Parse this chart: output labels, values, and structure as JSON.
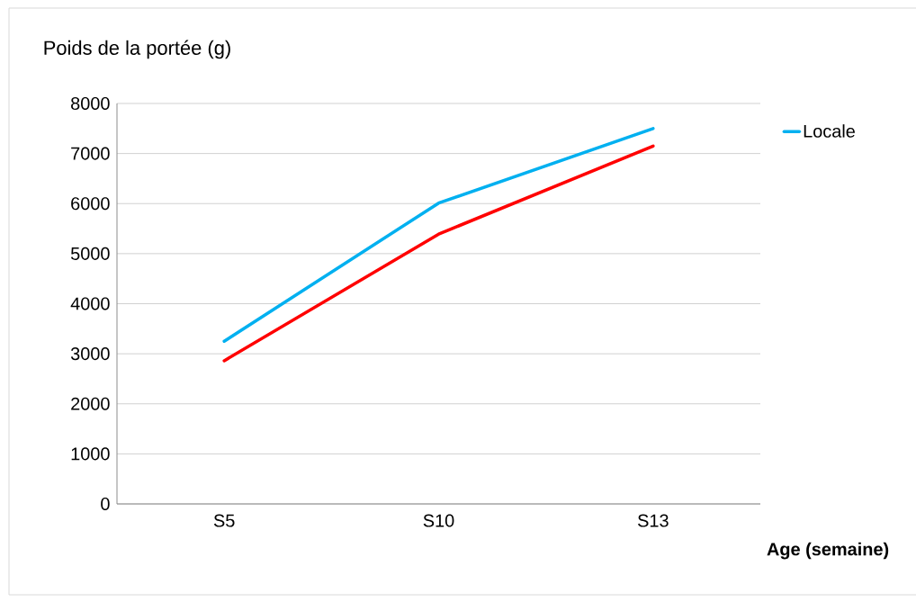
{
  "chart_data": {
    "type": "line",
    "ylabel": "Poids de la portée (g)",
    "xlabel": "Age (semaine)",
    "categories": [
      "S5",
      "S10",
      "S13"
    ],
    "series": [
      {
        "name": "Locale",
        "color": "#00b0f0",
        "values": [
          3250,
          6010,
          7500
        ]
      },
      {
        "color": "#ff0000",
        "values": [
          2860,
          5390,
          7150
        ]
      }
    ],
    "ylim": [
      0,
      8000
    ],
    "yticks": [
      0,
      1000,
      2000,
      3000,
      4000,
      5000,
      6000,
      7000,
      8000
    ],
    "grid": "y",
    "legend": "top right",
    "line_style": "solid",
    "marker": "none"
  }
}
